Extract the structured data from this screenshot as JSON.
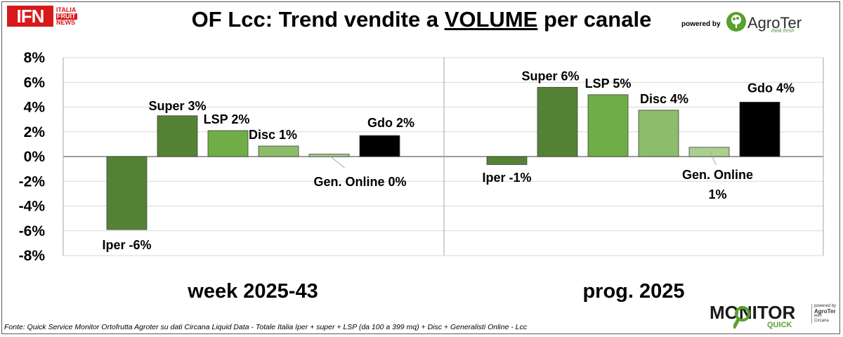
{
  "header": {
    "logo_main": "IFN",
    "logo_sub": [
      "ITALIA",
      "FRUIT",
      "NEWS"
    ],
    "title_pre": "OF Lcc: Trend vendite a ",
    "title_underlined": "VOLUME",
    "title_post": " per canale",
    "powered_by": "powered by",
    "brand": "AgroTer",
    "brand_tagline": "think fresh"
  },
  "chart_data": {
    "type": "bar",
    "ylim": [
      -8,
      8
    ],
    "yticks": [
      "8%",
      "6%",
      "4%",
      "2%",
      "0%",
      "-2%",
      "-4%",
      "-6%",
      "-8%"
    ],
    "grid": true,
    "series_colors": [
      "#548235",
      "#548235",
      "#70ad47",
      "#8bbd6b",
      "#a9d08e",
      "#000000"
    ],
    "panels": [
      {
        "label": "week 2025-43",
        "bars": [
          {
            "channel": "Iper",
            "value": -5.9,
            "label": "Iper -6%"
          },
          {
            "channel": "Super",
            "value": 3.3,
            "label": "Super 3%"
          },
          {
            "channel": "LSP",
            "value": 2.1,
            "label": "LSP 2%"
          },
          {
            "channel": "Disc",
            "value": 0.85,
            "label": "Disc 1%"
          },
          {
            "channel": "Gen. Online",
            "value": 0.2,
            "label": "Gen. Online 0%"
          },
          {
            "channel": "Gdo",
            "value": 1.7,
            "label": "Gdo 2%"
          }
        ]
      },
      {
        "label": "prog. 2025",
        "bars": [
          {
            "channel": "Iper",
            "value": -0.65,
            "label": "Iper -1%"
          },
          {
            "channel": "Super",
            "value": 5.6,
            "label": "Super 6%"
          },
          {
            "channel": "LSP",
            "value": 5.0,
            "label": "LSP 5%"
          },
          {
            "channel": "Disc",
            "value": 3.75,
            "label": "Disc 4%"
          },
          {
            "channel": "Gen. Online",
            "value": 0.75,
            "label": "Gen. Online\n1%"
          },
          {
            "channel": "Gdo",
            "value": 4.4,
            "label": "Gdo 4%"
          }
        ]
      }
    ]
  },
  "footer": {
    "source": "Fonte: Quick Service Monitor Ortofrutta Agroter su dati Circana Liquid Data - Totale Italia Iper + super + LSP (da 100 a 399 mq) + Disc + Generalisti Online - Lcc",
    "monitor_word": "MONITOR",
    "quick_word": "QUICK",
    "small_powered": "powered by",
    "small_brand": "AgroTer",
    "small_with": "with",
    "small_partner": "Circana"
  }
}
